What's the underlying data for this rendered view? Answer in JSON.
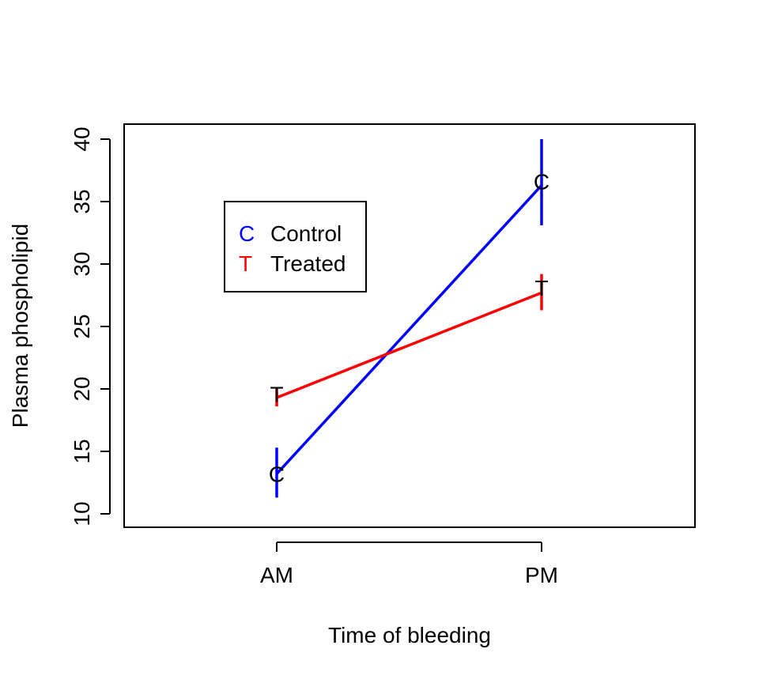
{
  "chart_data": {
    "type": "line",
    "title": "",
    "xlabel": "Time of bleeding",
    "ylabel": "Plasma phospholipid",
    "categories": [
      "AM",
      "PM"
    ],
    "ylim": [
      9,
      41
    ],
    "yticks": [
      10,
      15,
      20,
      25,
      30,
      35,
      40
    ],
    "grid": false,
    "legend_position": "top-left",
    "series": [
      {
        "name": "Control",
        "symbol": "C",
        "color": "#0000FF",
        "values": [
          13.2,
          36.3
        ],
        "error_low": [
          11.3,
          33.1
        ],
        "error_high": [
          15.3,
          40.0
        ],
        "marker_values": [
          13.2,
          36.6
        ]
      },
      {
        "name": "Treated",
        "symbol": "T",
        "color": "#FF0000",
        "values": [
          19.3,
          27.7
        ],
        "error_low": [
          18.6,
          26.3
        ],
        "error_high": [
          20.0,
          29.2
        ],
        "marker_values": [
          19.6,
          28.1
        ]
      }
    ]
  }
}
